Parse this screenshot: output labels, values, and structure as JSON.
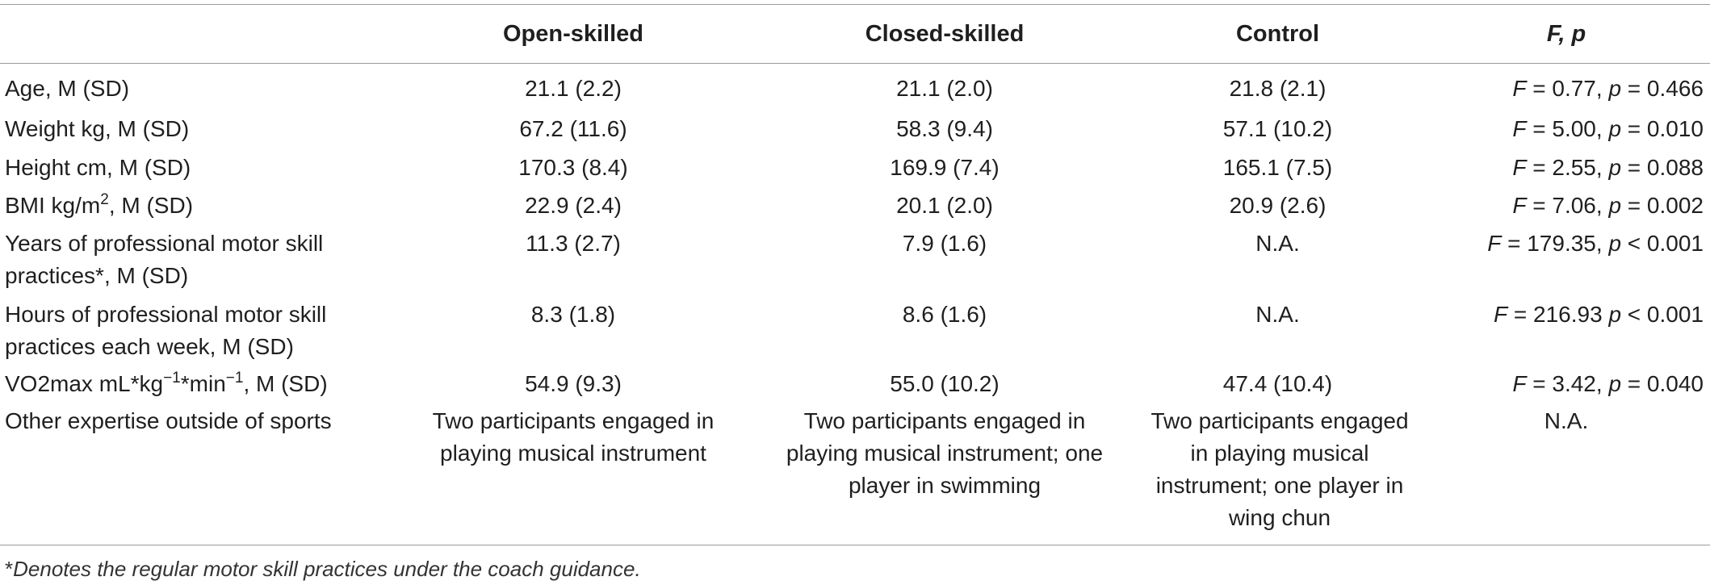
{
  "header": {
    "col1": "Open-skilled",
    "col2": "Closed-skilled",
    "col3": "Control",
    "col4": "F, p"
  },
  "rows": [
    {
      "label_pre": "Age, M (SD)",
      "open": "21.1 (2.2)",
      "closed": "21.1 (2.0)",
      "control": "21.8 (2.1)",
      "f_val": " = 0.77, ",
      "p_val": " = 0.466"
    },
    {
      "label_pre": "Weight kg, M (SD)",
      "open": "67.2 (11.6)",
      "closed": "58.3 (9.4)",
      "control": "57.1 (10.2)",
      "f_val": " = 5.00, ",
      "p_val": " = 0.010"
    },
    {
      "label_pre": "Height cm, M (SD)",
      "open": "170.3 (8.4)",
      "closed": "169.9 (7.4)",
      "control": "165.1 (7.5)",
      "f_val": " = 2.55, ",
      "p_val": " = 0.088"
    },
    {
      "label_pre": "BMI kg/m",
      "label_sup": "2",
      "label_post": ", M (SD)",
      "open": "22.9 (2.4)",
      "closed": "20.1 (2.0)",
      "control": "20.9 (2.6)",
      "f_val": " = 7.06, ",
      "p_val": " = 0.002"
    },
    {
      "label_line1": "Years of professional motor skill",
      "label_line2": "practices*, M (SD)",
      "open": "11.3 (2.7)",
      "closed": "7.9 (1.6)",
      "control": "N.A.",
      "f_val": " = 179.35, ",
      "p_val": " < 0.001"
    },
    {
      "label_line1": "Hours of professional motor skill",
      "label_line2": "practices each week, M (SD)",
      "open": "8.3 (1.8)",
      "closed": "8.6 (1.6)",
      "control": "N.A.",
      "f_val": " = 216.93 ",
      "p_val": " < 0.001"
    },
    {
      "label_pre": "VO2max mL*kg",
      "label_sup": "−1",
      "label_mid": "*min",
      "label_sup2": "−1",
      "label_post": ", M (SD)",
      "open": "54.9 (9.3)",
      "closed": "55.0 (10.2)",
      "control": "47.4 (10.4)",
      "f_val": " = 3.42, ",
      "p_val": " = 0.040"
    },
    {
      "label_pre": "Other expertise outside of sports",
      "open_lines": [
        "Two participants engaged in",
        "playing musical instrument"
      ],
      "closed_lines": [
        "Two participants engaged in",
        "playing musical instrument; one",
        "player in swimming"
      ],
      "control_lines": [
        "Two participants engaged",
        "in playing musical",
        "instrument; one player in",
        "wing chun"
      ],
      "fp": "N.A."
    }
  ],
  "stat_f": "F",
  "stat_p": "p",
  "footnote": {
    "mark": "*",
    "text": "Denotes the regular motor skill practices under the coach guidance."
  }
}
